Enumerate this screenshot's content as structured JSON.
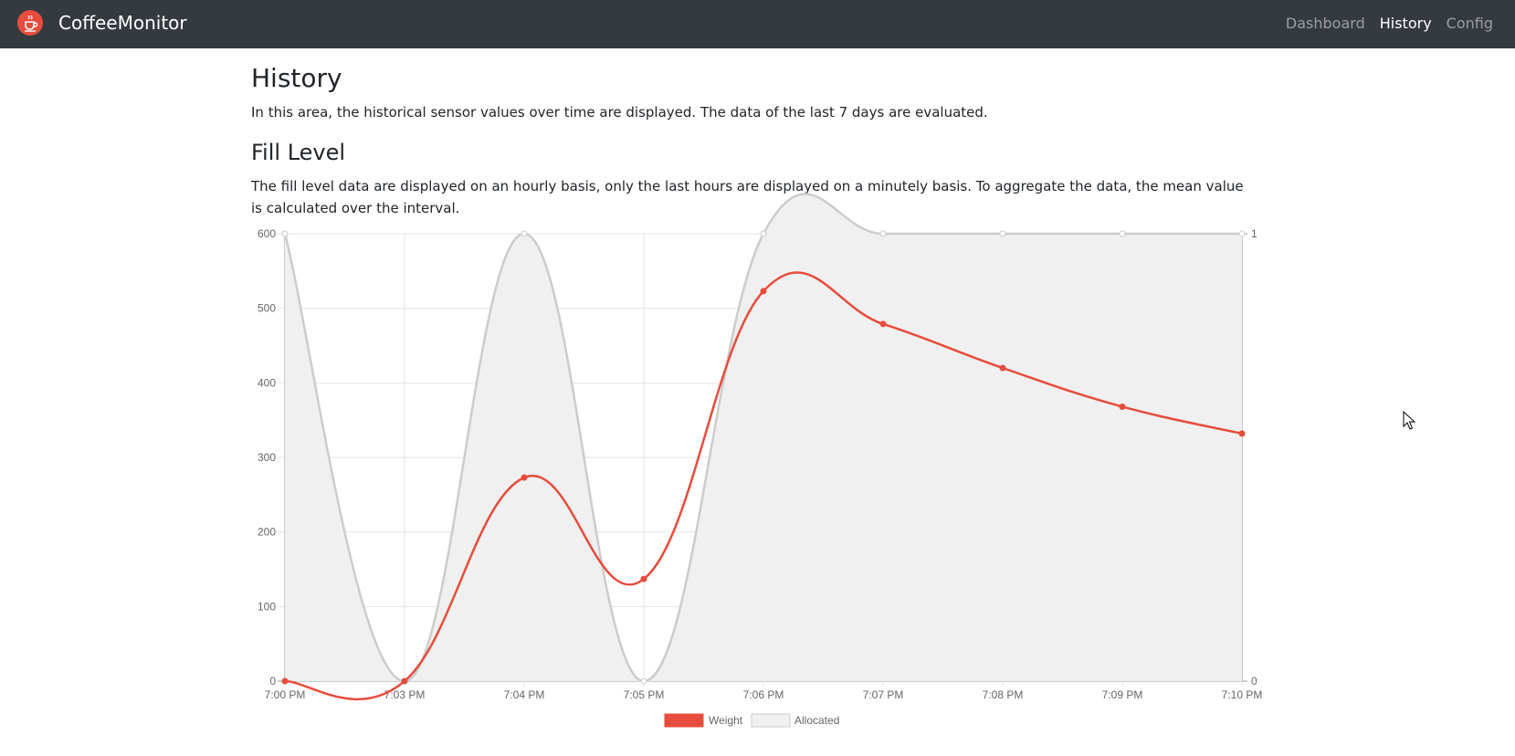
{
  "navbar": {
    "brand": "CoffeeMonitor",
    "links": [
      {
        "label": "Dashboard",
        "active": false
      },
      {
        "label": "History",
        "active": true
      },
      {
        "label": "Config",
        "active": false
      }
    ]
  },
  "page": {
    "title": "History",
    "description": "In this area, the historical sensor values over time are displayed. The data of the last 7 days are evaluated."
  },
  "fill_level": {
    "title": "Fill Level",
    "description": "The fill level data are displayed on an hourly basis, only the last hours are displayed on a minutely basis. To aggregate the data, the mean value is calculated over the interval."
  },
  "chart_data": {
    "type": "line",
    "x": [
      "7:00 PM",
      "7:03 PM",
      "7:04 PM",
      "7:05 PM",
      "7:06 PM",
      "7:07 PM",
      "7:08 PM",
      "7:09 PM",
      "7:10 PM"
    ],
    "series": [
      {
        "name": "Weight",
        "axis": "left",
        "color": "#e74c3c",
        "values": [
          0,
          0,
          273,
          137,
          523,
          479,
          420,
          368,
          332
        ]
      },
      {
        "name": "Allocated",
        "axis": "right",
        "color": "#cccccc",
        "fill": "#f0f0f0",
        "values": [
          1,
          0,
          1,
          0,
          1,
          1,
          1,
          1,
          1
        ]
      }
    ],
    "y_left": {
      "min": 0,
      "max": 600,
      "ticks": [
        0,
        100,
        200,
        300,
        400,
        500,
        600
      ]
    },
    "y_right": {
      "min": 0,
      "max": 1,
      "ticks": [
        0,
        1
      ]
    },
    "grid": true,
    "legend": "bottom"
  }
}
